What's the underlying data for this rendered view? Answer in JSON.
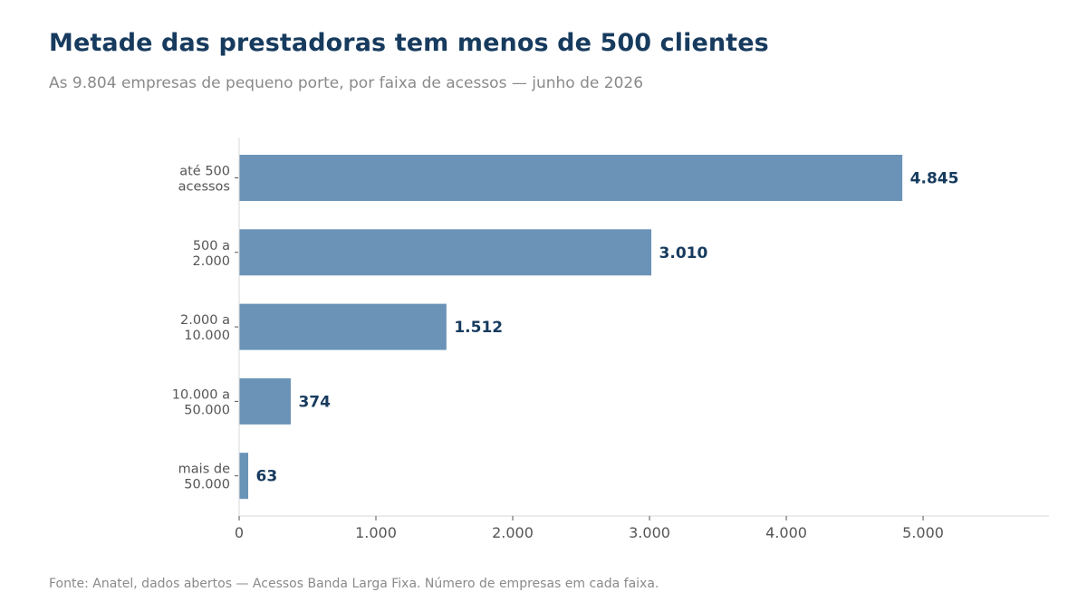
{
  "header": {
    "title": "Metade das prestadoras tem menos de 500 clientes",
    "subtitle": "As 9.804 empresas de pequeno porte, por faixa de acessos — junho de 2026"
  },
  "footer": {
    "source": "Fonte: Anatel, dados abertos — Acessos Banda Larga Fixa. Número de empresas em cada faixa."
  },
  "colors": {
    "bar": "#6b93b7",
    "title": "#173b5e",
    "value_label": "#173b5e",
    "axis": "#d9d9d9",
    "text_muted": "#555555"
  },
  "chart_data": {
    "type": "bar",
    "orientation": "horizontal",
    "title": "Metade das prestadoras tem menos de 500 clientes",
    "subtitle": "As 9.804 empresas de pequeno porte, por faixa de acessos — junho de 2026",
    "xlabel": "",
    "ylabel": "",
    "categories": [
      [
        "até 500",
        "acessos"
      ],
      [
        "500 a",
        "2.000"
      ],
      [
        "2.000 a",
        "10.000"
      ],
      [
        "10.000 a",
        "50.000"
      ],
      [
        "mais de",
        "50.000"
      ]
    ],
    "values": [
      4845,
      3010,
      1512,
      374,
      63
    ],
    "value_labels": [
      "4.845",
      "3.010",
      "1.512",
      "374",
      "63"
    ],
    "xlim": [
      0,
      5920
    ],
    "x_ticks": [
      0,
      1000,
      2000,
      3000,
      4000,
      5000
    ],
    "x_tick_labels": [
      "0",
      "1.000",
      "2.000",
      "3.000",
      "4.000",
      "5.000"
    ],
    "grid": false,
    "legend": "none"
  }
}
